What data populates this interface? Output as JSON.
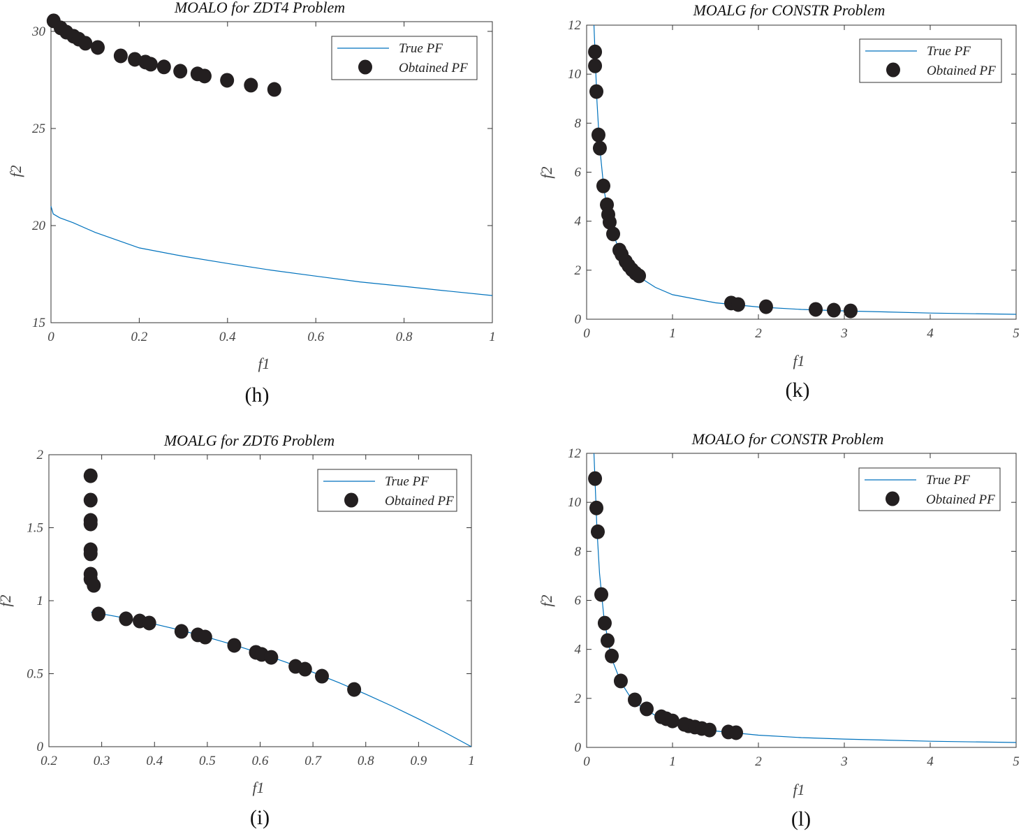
{
  "chart_data": [
    {
      "panel_label": "(h)",
      "type": "scatter",
      "title": "MOALO for ZDT4 Problem",
      "xlabel": "f1",
      "ylabel": "f2",
      "xlim": [
        0,
        1
      ],
      "ylim": [
        15,
        30.5
      ],
      "xticks": [
        0,
        0.2,
        0.4,
        0.6,
        0.8,
        1
      ],
      "xtick_labels": [
        "0",
        "0.2",
        "0.4",
        "0.6",
        "0.8",
        "1"
      ],
      "yticks": [
        15,
        20,
        25,
        30
      ],
      "ytick_labels": [
        "15",
        "20",
        "25",
        "30"
      ],
      "legend_position": "top-right",
      "series": [
        {
          "name": "True PF",
          "kind": "line",
          "color": "#0072BD",
          "x": [
            0,
            0.005,
            0.02,
            0.05,
            0.1,
            0.2,
            0.3,
            0.4,
            0.5,
            0.6,
            0.7,
            0.8,
            0.9,
            1
          ],
          "y": [
            21.0,
            20.6,
            20.4,
            20.15,
            19.65,
            18.85,
            18.42,
            18.05,
            17.7,
            17.4,
            17.1,
            16.87,
            16.63,
            16.4
          ]
        },
        {
          "name": "Obtained PF",
          "kind": "marker",
          "color": "#231f20",
          "x": [
            0.006,
            0.022,
            0.035,
            0.051,
            0.063,
            0.078,
            0.106,
            0.158,
            0.19,
            0.214,
            0.226,
            0.256,
            0.293,
            0.332,
            0.348,
            0.399,
            0.453,
            0.506
          ],
          "y": [
            30.54,
            30.18,
            29.96,
            29.75,
            29.6,
            29.39,
            29.17,
            28.74,
            28.56,
            28.42,
            28.31,
            28.17,
            27.95,
            27.81,
            27.7,
            27.48,
            27.23,
            27.01
          ]
        }
      ]
    },
    {
      "panel_label": "(k)",
      "type": "scatter",
      "title": "MOALG for CONSTR Problem",
      "xlabel": "f1",
      "ylabel": "f2",
      "xlim": [
        0,
        5
      ],
      "ylim": [
        0,
        12
      ],
      "xticks": [
        0,
        1,
        2,
        3,
        4,
        5
      ],
      "xtick_labels": [
        "0",
        "1",
        "2",
        "3",
        "4",
        "5"
      ],
      "yticks": [
        0,
        2,
        4,
        6,
        8,
        10,
        12
      ],
      "ytick_labels": [
        "0",
        "2",
        "4",
        "6",
        "8",
        "10",
        "12"
      ],
      "legend_position": "top-right",
      "series": [
        {
          "name": "True PF",
          "kind": "line",
          "color": "#0072BD",
          "x": [
            0.085,
            0.1,
            0.12,
            0.15,
            0.2,
            0.25,
            0.3,
            0.4,
            0.5,
            0.6,
            0.8,
            1,
            1.5,
            2,
            2.5,
            3,
            4,
            5
          ],
          "y": [
            12.0,
            10.7,
            8.9,
            7.1,
            5.35,
            4.3,
            3.55,
            2.65,
            2.1,
            1.75,
            1.3,
            1.0,
            0.67,
            0.5,
            0.4,
            0.34,
            0.25,
            0.2
          ]
        },
        {
          "name": "Obtained PF",
          "kind": "marker",
          "color": "#231f20",
          "x": [
            0.098,
            0.098,
            0.114,
            0.138,
            0.154,
            0.195,
            0.236,
            0.252,
            0.268,
            0.309,
            0.382,
            0.407,
            0.455,
            0.488,
            0.528,
            0.569,
            0.61,
            1.683,
            1.764,
            2.089,
            2.667,
            2.878,
            3.073
          ],
          "y": [
            10.91,
            10.34,
            9.29,
            7.52,
            6.98,
            5.44,
            4.67,
            4.27,
            3.96,
            3.48,
            2.82,
            2.65,
            2.36,
            2.19,
            2.02,
            1.88,
            1.77,
            0.66,
            0.6,
            0.51,
            0.4,
            0.37,
            0.34
          ]
        }
      ]
    },
    {
      "panel_label": "(i)",
      "type": "scatter",
      "title": "MOALG for ZDT6 Problem",
      "xlabel": "f1",
      "ylabel": "f2",
      "xlim": [
        0.2,
        1
      ],
      "ylim": [
        0,
        2
      ],
      "xticks": [
        0.2,
        0.3,
        0.4,
        0.5,
        0.6,
        0.7,
        0.8,
        0.9,
        1
      ],
      "xtick_labels": [
        "0.2",
        "0.3",
        "0.4",
        "0.5",
        "0.6",
        "0.7",
        "0.8",
        "0.9",
        "1"
      ],
      "yticks": [
        0,
        0.5,
        1,
        1.5,
        2
      ],
      "ytick_labels": [
        "0",
        "0.5",
        "1",
        "1.5",
        "2"
      ],
      "legend_position": "top-right",
      "series": [
        {
          "name": "True PF",
          "kind": "line",
          "color": "#0072BD",
          "x": [
            0.28,
            0.3,
            0.35,
            0.4,
            0.45,
            0.5,
            0.55,
            0.6,
            0.65,
            0.7,
            0.75,
            0.8,
            0.85,
            0.9,
            0.95,
            1
          ],
          "y": [
            0.9216,
            0.91,
            0.8775,
            0.84,
            0.7975,
            0.75,
            0.6975,
            0.64,
            0.5775,
            0.51,
            0.4375,
            0.36,
            0.2775,
            0.19,
            0.0975,
            0
          ]
        },
        {
          "name": "Obtained PF",
          "kind": "marker",
          "color": "#231f20",
          "x": [
            0.279,
            0.279,
            0.279,
            0.279,
            0.279,
            0.279,
            0.279,
            0.279,
            0.285,
            0.294,
            0.346,
            0.372,
            0.39,
            0.451,
            0.482,
            0.496,
            0.551,
            0.592,
            0.603,
            0.621,
            0.667,
            0.685,
            0.717,
            0.778
          ],
          "y": [
            1.856,
            1.689,
            1.55,
            1.526,
            1.349,
            1.321,
            1.182,
            1.148,
            1.105,
            0.909,
            0.876,
            0.861,
            0.847,
            0.79,
            0.766,
            0.751,
            0.694,
            0.646,
            0.632,
            0.612,
            0.55,
            0.531,
            0.483,
            0.392
          ]
        }
      ]
    },
    {
      "panel_label": "(l)",
      "type": "scatter",
      "title": "MOALO for CONSTR Problem",
      "xlabel": "f1",
      "ylabel": "f2",
      "xlim": [
        0,
        5
      ],
      "ylim": [
        0,
        12
      ],
      "xticks": [
        0,
        1,
        2,
        3,
        4,
        5
      ],
      "xtick_labels": [
        "0",
        "1",
        "2",
        "3",
        "4",
        "5"
      ],
      "yticks": [
        0,
        2,
        4,
        6,
        8,
        10,
        12
      ],
      "ytick_labels": [
        "0",
        "2",
        "4",
        "6",
        "8",
        "10",
        "12"
      ],
      "legend_position": "top-right",
      "series": [
        {
          "name": "True PF",
          "kind": "line",
          "color": "#0072BD",
          "x": [
            0.085,
            0.1,
            0.12,
            0.15,
            0.2,
            0.25,
            0.3,
            0.4,
            0.5,
            0.6,
            0.8,
            1,
            1.5,
            2,
            2.5,
            3,
            4,
            5
          ],
          "y": [
            12.0,
            10.7,
            8.9,
            7.1,
            5.35,
            4.3,
            3.55,
            2.65,
            2.1,
            1.75,
            1.3,
            1.0,
            0.67,
            0.5,
            0.4,
            0.34,
            0.25,
            0.2
          ]
        },
        {
          "name": "Obtained PF",
          "kind": "marker",
          "color": "#231f20",
          "x": [
            0.098,
            0.114,
            0.13,
            0.171,
            0.211,
            0.244,
            0.293,
            0.398,
            0.561,
            0.699,
            0.87,
            0.927,
            1.0,
            1.138,
            1.187,
            1.26,
            1.341,
            1.431,
            1.65,
            1.74
          ],
          "y": [
            10.97,
            9.77,
            8.8,
            6.24,
            5.07,
            4.36,
            3.73,
            2.71,
            1.94,
            1.57,
            1.25,
            1.17,
            1.08,
            0.94,
            0.88,
            0.83,
            0.77,
            0.71,
            0.63,
            0.6
          ]
        }
      ]
    }
  ]
}
